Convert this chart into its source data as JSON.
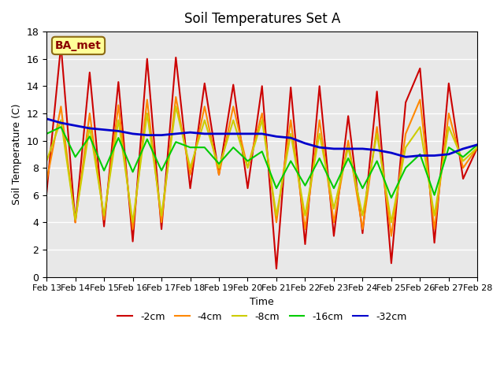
{
  "title": "Soil Temperatures Set A",
  "xlabel": "Time",
  "ylabel": "Soil Temperature (C)",
  "ylim": [
    0,
    18
  ],
  "xlim": [
    0,
    360
  ],
  "annotation": "BA_met",
  "legend_labels": [
    "-2cm",
    "-4cm",
    "-8cm",
    "-16cm",
    "-32cm"
  ],
  "legend_colors": [
    "#cc0000",
    "#ff8800",
    "#cccc00",
    "#00cc00",
    "#0000cc"
  ],
  "x_tick_labels": [
    "Feb 13",
    "Feb 14",
    "Feb 15",
    "Feb 16",
    "Feb 17",
    "Feb 18",
    "Feb 19",
    "Feb 20",
    "Feb 21",
    "Feb 22",
    "Feb 23",
    "Feb 24",
    "Feb 25",
    "Feb 26",
    "Feb 27",
    "Feb 28"
  ],
  "background_color": "#e8e8e8",
  "plot_bg_color": "#e8e8e8",
  "series": {
    "d2cm": {
      "color": "#cc0000",
      "lw": 1.5,
      "x": [
        0,
        12,
        24,
        36,
        48,
        60,
        72,
        84,
        96,
        108,
        120,
        132,
        144,
        156,
        168,
        180,
        192,
        204,
        216,
        228,
        240,
        252,
        264,
        276,
        288,
        300,
        312,
        324,
        336,
        348,
        360
      ],
      "y": [
        6.2,
        17.0,
        4.0,
        15.0,
        3.7,
        14.3,
        2.6,
        16.0,
        3.5,
        16.1,
        6.5,
        14.2,
        7.5,
        14.1,
        6.5,
        14.0,
        0.6,
        13.9,
        2.4,
        14.0,
        3.0,
        11.8,
        3.2,
        13.6,
        1.0,
        12.8,
        15.3,
        2.5,
        14.2,
        7.2,
        9.5
      ]
    },
    "d4cm": {
      "color": "#ff8800",
      "lw": 1.5,
      "x": [
        0,
        12,
        24,
        36,
        48,
        60,
        72,
        84,
        96,
        108,
        120,
        132,
        144,
        156,
        168,
        180,
        192,
        204,
        216,
        228,
        240,
        252,
        264,
        276,
        288,
        300,
        312,
        324,
        336,
        348,
        360
      ],
      "y": [
        7.0,
        12.5,
        4.0,
        12.0,
        4.2,
        12.6,
        3.5,
        13.0,
        4.0,
        13.2,
        7.5,
        12.5,
        7.5,
        12.5,
        8.0,
        12.0,
        4.0,
        11.5,
        3.5,
        11.5,
        4.0,
        10.0,
        3.5,
        11.0,
        3.0,
        10.5,
        13.0,
        3.5,
        12.0,
        8.0,
        9.5
      ]
    },
    "d8cm": {
      "color": "#cccc00",
      "lw": 1.5,
      "x": [
        0,
        12,
        24,
        36,
        48,
        60,
        72,
        84,
        96,
        108,
        120,
        132,
        144,
        156,
        168,
        180,
        192,
        204,
        216,
        228,
        240,
        252,
        264,
        276,
        288,
        300,
        312,
        324,
        336,
        348,
        360
      ],
      "y": [
        8.5,
        11.5,
        4.2,
        11.0,
        4.5,
        11.5,
        4.0,
        12.0,
        4.5,
        12.5,
        8.0,
        11.5,
        8.0,
        11.5,
        8.0,
        11.5,
        4.5,
        10.5,
        4.5,
        10.5,
        5.0,
        9.5,
        4.5,
        10.5,
        4.0,
        9.5,
        11.0,
        4.5,
        11.0,
        8.5,
        9.5
      ]
    },
    "d16cm": {
      "color": "#00cc00",
      "lw": 1.5,
      "x": [
        0,
        12,
        24,
        36,
        48,
        60,
        72,
        84,
        96,
        108,
        120,
        132,
        144,
        156,
        168,
        180,
        192,
        204,
        216,
        228,
        240,
        252,
        264,
        276,
        288,
        300,
        312,
        324,
        336,
        348,
        360
      ],
      "y": [
        10.5,
        11.0,
        8.8,
        10.3,
        7.8,
        10.2,
        7.7,
        10.1,
        7.8,
        9.9,
        9.5,
        9.5,
        8.3,
        9.5,
        8.5,
        9.2,
        6.5,
        8.5,
        6.7,
        8.7,
        6.5,
        8.7,
        6.5,
        8.5,
        5.8,
        8.0,
        9.0,
        6.0,
        9.5,
        8.8,
        9.7
      ]
    },
    "d32cm": {
      "color": "#0000cc",
      "lw": 2.0,
      "x": [
        0,
        12,
        24,
        36,
        48,
        60,
        72,
        84,
        96,
        108,
        120,
        132,
        144,
        156,
        168,
        180,
        192,
        204,
        216,
        228,
        240,
        252,
        264,
        276,
        288,
        300,
        312,
        324,
        336,
        348,
        360
      ],
      "y": [
        11.6,
        11.3,
        11.1,
        10.9,
        10.8,
        10.7,
        10.5,
        10.4,
        10.4,
        10.5,
        10.6,
        10.5,
        10.5,
        10.5,
        10.5,
        10.5,
        10.3,
        10.2,
        9.8,
        9.5,
        9.4,
        9.4,
        9.4,
        9.3,
        9.1,
        8.8,
        8.9,
        8.9,
        9.0,
        9.4,
        9.7
      ]
    }
  }
}
